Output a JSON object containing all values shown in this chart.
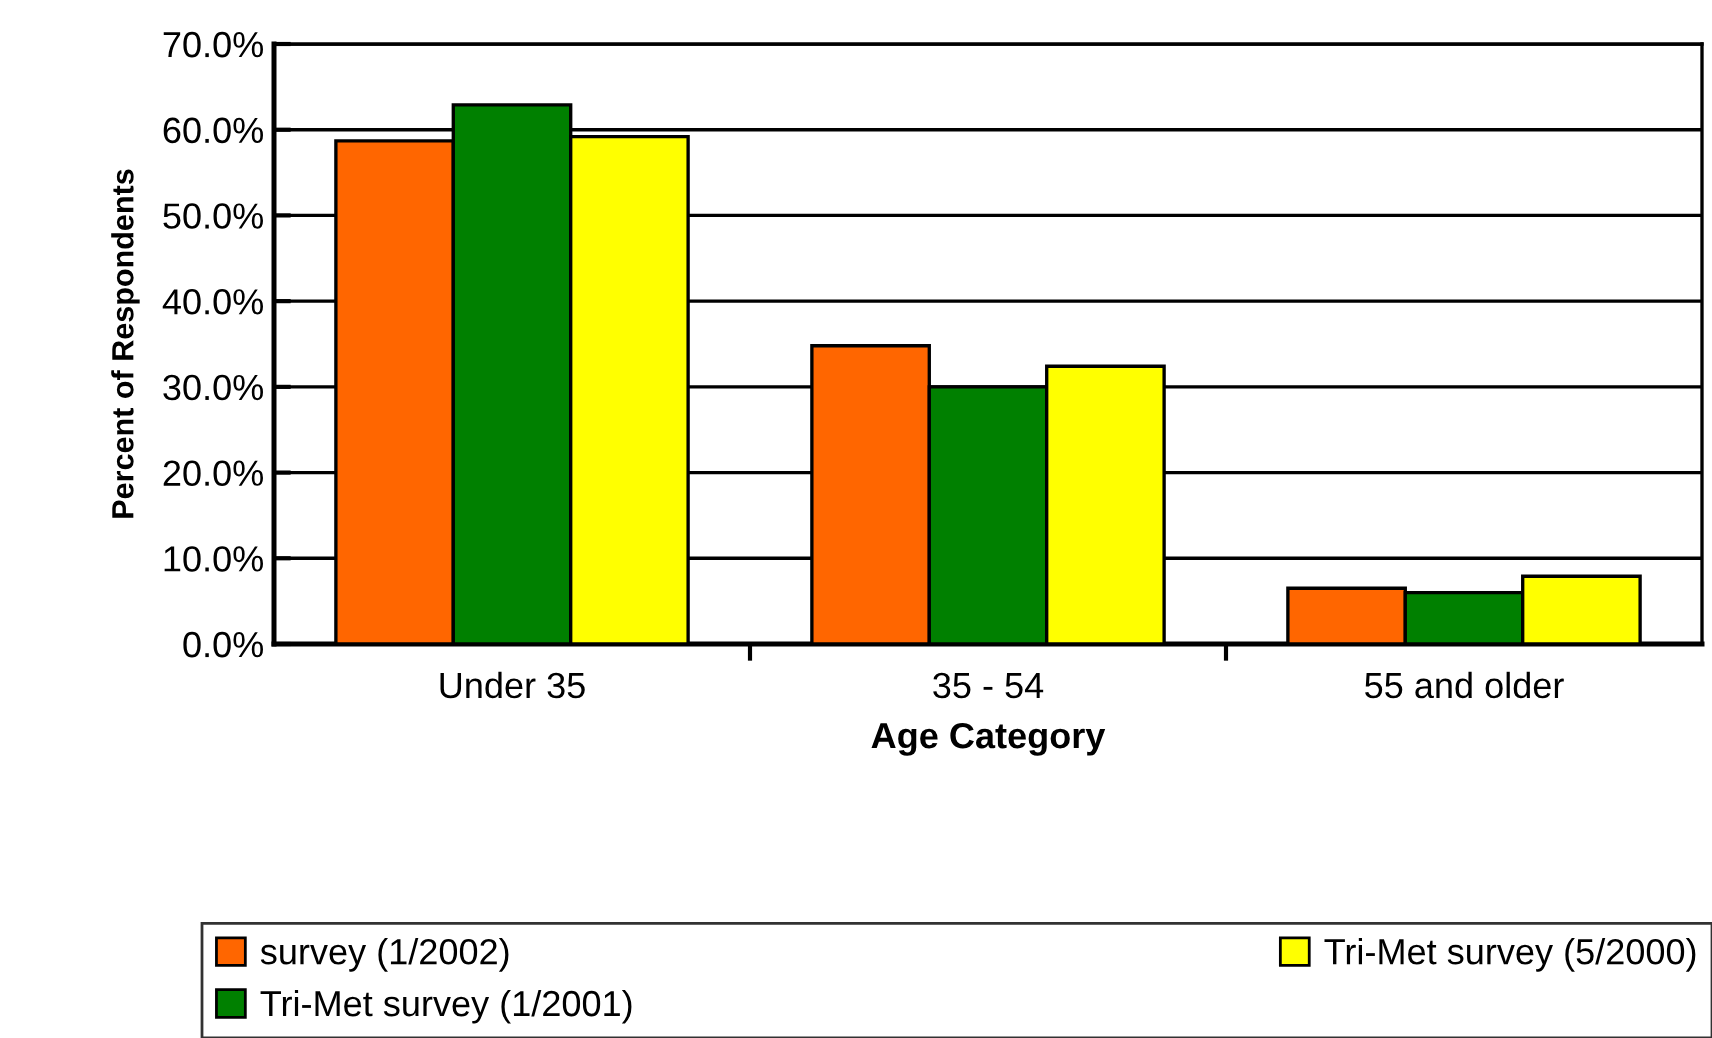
{
  "chart_data": {
    "type": "bar",
    "xlabel": "Age Category",
    "ylabel": "Percent of Respondents",
    "categories": [
      "Under 35",
      "35 - 54",
      "55 and older"
    ],
    "series": [
      {
        "name": "survey (1/2002)",
        "color": "#ff6600",
        "values": [
          58.7,
          34.8,
          6.5
        ]
      },
      {
        "name": "Tri-Met survey (1/2001)",
        "color": "#008000",
        "values": [
          62.9,
          30.0,
          6.0
        ]
      },
      {
        "name": "Tri-Met survey (5/2000)",
        "color": "#ffff00",
        "values": [
          59.2,
          32.4,
          7.9
        ]
      }
    ],
    "ylim": [
      0,
      70
    ],
    "yticks": [
      {
        "value": 0,
        "label": "0.0%"
      },
      {
        "value": 10,
        "label": "10.0%"
      },
      {
        "value": 20,
        "label": "20.0%"
      },
      {
        "value": 30,
        "label": "30.0%"
      },
      {
        "value": 40,
        "label": "40.0%"
      },
      {
        "value": 50,
        "label": "50.0%"
      },
      {
        "value": 60,
        "label": "60.0%"
      },
      {
        "value": 70,
        "label": "70.0%"
      }
    ],
    "grid": "y",
    "legend": "bottom"
  }
}
